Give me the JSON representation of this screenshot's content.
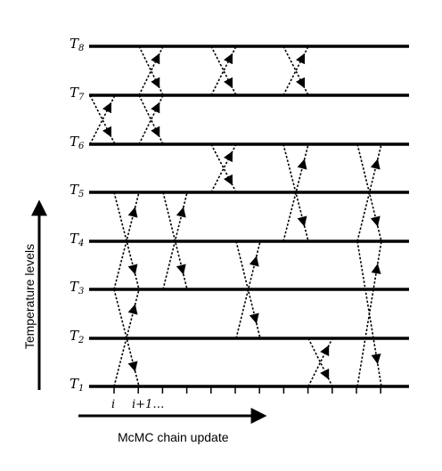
{
  "levels": [
    {
      "name": "T",
      "sub": "8"
    },
    {
      "name": "T",
      "sub": "7"
    },
    {
      "name": "T",
      "sub": "6"
    },
    {
      "name": "T",
      "sub": "5"
    },
    {
      "name": "T",
      "sub": "4"
    },
    {
      "name": "T",
      "sub": "3"
    },
    {
      "name": "T",
      "sub": "2"
    },
    {
      "name": "T",
      "sub": "1"
    }
  ],
  "y_axis_label": "Temperature levels",
  "x_axis_label": "McMC chain update",
  "tick_labels": {
    "first": "i",
    "second": "i+1…"
  },
  "colors": {
    "line": "#000000"
  }
}
